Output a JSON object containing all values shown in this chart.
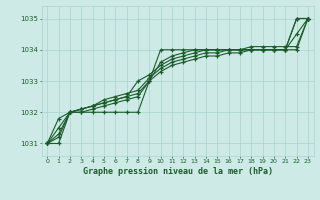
{
  "title": "Graphe pression niveau de la mer (hPa)",
  "background_color": "#ceeae6",
  "grid_color": "#a8d4ce",
  "line_color": "#1a5c2a",
  "text_color": "#1a5c2a",
  "xlim": [
    -0.5,
    23.5
  ],
  "ylim": [
    1030.6,
    1035.4
  ],
  "yticks": [
    1031,
    1032,
    1033,
    1034,
    1035
  ],
  "xticks": [
    0,
    1,
    2,
    3,
    4,
    5,
    6,
    7,
    8,
    9,
    10,
    11,
    12,
    13,
    14,
    15,
    16,
    17,
    18,
    19,
    20,
    21,
    22,
    23
  ],
  "series": [
    [
      1031.0,
      1031.0,
      1032.0,
      1032.0,
      1032.0,
      1032.0,
      1032.0,
      1032.0,
      1032.0,
      1033.0,
      1034.0,
      1034.0,
      1034.0,
      1034.0,
      1034.0,
      1034.0,
      1034.0,
      1034.0,
      1034.0,
      1034.0,
      1034.0,
      1034.0,
      1035.0,
      1035.0
    ],
    [
      1031.0,
      1031.2,
      1032.0,
      1032.1,
      1032.2,
      1032.3,
      1032.4,
      1032.5,
      1032.6,
      1033.0,
      1033.3,
      1033.5,
      1033.6,
      1033.7,
      1033.8,
      1033.8,
      1033.9,
      1033.9,
      1034.0,
      1034.0,
      1034.0,
      1034.0,
      1034.0,
      1035.0
    ],
    [
      1031.0,
      1031.3,
      1032.0,
      1032.1,
      1032.2,
      1032.4,
      1032.5,
      1032.6,
      1032.7,
      1033.1,
      1033.4,
      1033.6,
      1033.7,
      1033.8,
      1033.9,
      1033.9,
      1034.0,
      1034.0,
      1034.1,
      1034.1,
      1034.1,
      1034.1,
      1034.1,
      1035.0
    ],
    [
      1031.0,
      1031.5,
      1032.0,
      1032.1,
      1032.2,
      1032.3,
      1032.4,
      1032.5,
      1033.0,
      1033.2,
      1033.5,
      1033.7,
      1033.8,
      1033.9,
      1034.0,
      1034.0,
      1034.0,
      1034.0,
      1034.0,
      1034.0,
      1034.0,
      1034.0,
      1034.5,
      1035.0
    ],
    [
      1031.0,
      1031.8,
      1032.0,
      1032.0,
      1032.1,
      1032.2,
      1032.3,
      1032.4,
      1032.5,
      1033.0,
      1033.6,
      1033.8,
      1033.9,
      1034.0,
      1034.0,
      1034.0,
      1034.0,
      1034.0,
      1034.0,
      1034.0,
      1034.0,
      1034.0,
      1035.0,
      1035.0
    ]
  ]
}
